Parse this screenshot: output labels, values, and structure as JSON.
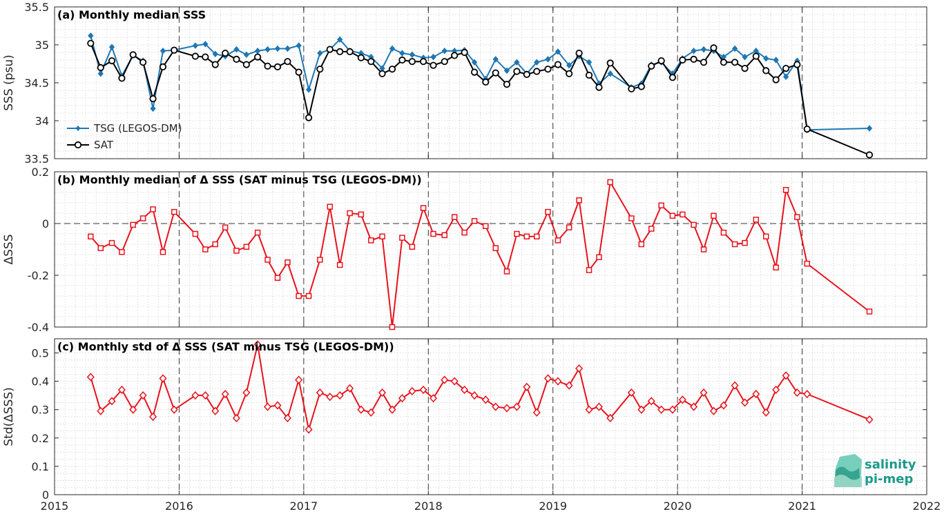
{
  "chart_data": [
    {
      "type": "line",
      "title": "(a) Monthly median SSS",
      "ylabel": "SSS (psu)",
      "xlim": [
        2015,
        2022
      ],
      "ylim": [
        33.5,
        35.5
      ],
      "yticks": [
        "33.5",
        "34",
        "34.5",
        "35",
        "35.5"
      ],
      "grid": true,
      "legend_position": "left",
      "series": [
        {
          "name": "TSG (LEGOS-DM)",
          "color": "#1f77b4",
          "marker": "filled-diamond",
          "x": [
            2015.29,
            2015.37,
            2015.46,
            2015.54,
            2015.63,
            2015.71,
            2015.79,
            2015.87,
            2015.96,
            2016.13,
            2016.21,
            2016.29,
            2016.37,
            2016.46,
            2016.54,
            2016.63,
            2016.71,
            2016.79,
            2016.87,
            2016.96,
            2017.04,
            2017.13,
            2017.21,
            2017.29,
            2017.37,
            2017.46,
            2017.54,
            2017.63,
            2017.71,
            2017.79,
            2017.87,
            2017.96,
            2018.04,
            2018.13,
            2018.21,
            2018.29,
            2018.37,
            2018.46,
            2018.54,
            2018.63,
            2018.71,
            2018.79,
            2018.87,
            2018.96,
            2019.04,
            2019.13,
            2019.21,
            2019.29,
            2019.37,
            2019.46,
            2019.63,
            2019.71,
            2019.79,
            2019.87,
            2019.96,
            2020.04,
            2020.13,
            2020.21,
            2020.29,
            2020.37,
            2020.46,
            2020.54,
            2020.63,
            2020.71,
            2020.79,
            2020.87,
            2020.96,
            2021.04,
            2021.54
          ],
          "values": [
            35.12,
            34.62,
            34.97,
            34.59,
            34.86,
            34.79,
            34.16,
            34.92,
            34.93,
            34.99,
            35.01,
            34.88,
            34.85,
            34.94,
            34.87,
            34.92,
            34.94,
            34.95,
            34.95,
            34.99,
            34.41,
            34.89,
            34.94,
            35.07,
            34.92,
            34.89,
            34.84,
            34.69,
            34.95,
            34.89,
            34.87,
            34.83,
            34.84,
            34.92,
            34.92,
            34.93,
            34.77,
            34.55,
            34.81,
            34.66,
            34.77,
            34.62,
            34.77,
            34.81,
            34.91,
            34.73,
            34.85,
            34.77,
            34.49,
            34.62,
            34.44,
            34.49,
            34.74,
            34.77,
            34.62,
            34.82,
            34.92,
            34.94,
            34.92,
            34.84,
            34.95,
            34.84,
            34.92,
            34.82,
            34.8,
            34.58,
            34.79,
            33.88,
            33.9
          ]
        },
        {
          "name": "SAT",
          "color": "#000000",
          "marker": "open-circle",
          "x": [
            2015.29,
            2015.37,
            2015.46,
            2015.54,
            2015.63,
            2015.71,
            2015.79,
            2015.87,
            2015.96,
            2016.13,
            2016.21,
            2016.29,
            2016.37,
            2016.46,
            2016.54,
            2016.63,
            2016.71,
            2016.79,
            2016.87,
            2016.96,
            2017.04,
            2017.13,
            2017.21,
            2017.29,
            2017.37,
            2017.46,
            2017.54,
            2017.63,
            2017.71,
            2017.79,
            2017.87,
            2017.96,
            2018.04,
            2018.13,
            2018.21,
            2018.29,
            2018.37,
            2018.46,
            2018.54,
            2018.63,
            2018.71,
            2018.79,
            2018.87,
            2018.96,
            2019.04,
            2019.13,
            2019.21,
            2019.29,
            2019.37,
            2019.46,
            2019.63,
            2019.71,
            2019.79,
            2019.87,
            2019.96,
            2020.04,
            2020.13,
            2020.21,
            2020.29,
            2020.37,
            2020.46,
            2020.54,
            2020.63,
            2020.71,
            2020.79,
            2020.87,
            2020.96,
            2021.04,
            2021.54
          ],
          "values": [
            35.02,
            34.7,
            34.79,
            34.56,
            34.87,
            34.77,
            34.29,
            34.71,
            34.93,
            34.85,
            34.84,
            34.74,
            34.89,
            34.81,
            34.74,
            34.84,
            34.72,
            34.71,
            34.78,
            34.64,
            34.04,
            34.68,
            34.94,
            34.91,
            34.91,
            34.83,
            34.78,
            34.62,
            34.68,
            34.8,
            34.78,
            34.78,
            34.73,
            34.78,
            34.86,
            34.9,
            34.64,
            34.51,
            34.63,
            34.48,
            34.65,
            34.61,
            34.65,
            34.68,
            34.74,
            34.62,
            34.89,
            34.6,
            34.44,
            34.76,
            34.42,
            34.45,
            34.72,
            34.79,
            34.57,
            34.8,
            34.81,
            34.77,
            34.96,
            34.77,
            34.77,
            34.69,
            34.85,
            34.66,
            34.54,
            34.69,
            34.74,
            33.89,
            33.55
          ]
        }
      ]
    },
    {
      "type": "line",
      "title": "(b) Monthly median of Δ SSS (SAT minus TSG (LEGOS-DM))",
      "ylabel": "ΔSSS",
      "xlim": [
        2015,
        2022
      ],
      "ylim": [
        -0.4,
        0.2
      ],
      "yticks": [
        "-0.4",
        "-0.2",
        "0",
        "0.2"
      ],
      "grid": true,
      "zero_line": "dashed",
      "series": [
        {
          "color": "#e8111b",
          "marker": "open-square",
          "x": [
            2015.29,
            2015.37,
            2015.46,
            2015.54,
            2015.63,
            2015.71,
            2015.79,
            2015.87,
            2015.96,
            2016.13,
            2016.21,
            2016.29,
            2016.37,
            2016.46,
            2016.54,
            2016.63,
            2016.71,
            2016.79,
            2016.87,
            2016.96,
            2017.04,
            2017.13,
            2017.21,
            2017.29,
            2017.37,
            2017.46,
            2017.54,
            2017.63,
            2017.71,
            2017.79,
            2017.87,
            2017.96,
            2018.04,
            2018.13,
            2018.21,
            2018.29,
            2018.37,
            2018.46,
            2018.54,
            2018.63,
            2018.71,
            2018.79,
            2018.87,
            2018.96,
            2019.04,
            2019.13,
            2019.21,
            2019.29,
            2019.37,
            2019.46,
            2019.63,
            2019.71,
            2019.79,
            2019.87,
            2019.96,
            2020.04,
            2020.13,
            2020.21,
            2020.29,
            2020.37,
            2020.46,
            2020.54,
            2020.63,
            2020.71,
            2020.79,
            2020.87,
            2020.96,
            2021.04,
            2021.54
          ],
          "values": [
            -0.05,
            -0.095,
            -0.075,
            -0.11,
            -0.005,
            0.02,
            0.055,
            -0.11,
            0.045,
            -0.04,
            -0.1,
            -0.08,
            -0.015,
            -0.105,
            -0.09,
            -0.035,
            -0.14,
            -0.21,
            -0.15,
            -0.28,
            -0.28,
            -0.14,
            0.065,
            -0.16,
            0.04,
            0.035,
            -0.065,
            -0.05,
            -0.4,
            -0.055,
            -0.09,
            0.06,
            -0.04,
            -0.045,
            0.025,
            -0.035,
            0.01,
            -0.01,
            -0.095,
            -0.185,
            -0.04,
            -0.05,
            -0.05,
            0.045,
            -0.065,
            -0.015,
            0.09,
            -0.18,
            -0.13,
            0.16,
            0.02,
            -0.08,
            -0.02,
            0.07,
            0.03,
            0.035,
            -0.005,
            -0.1,
            0.03,
            -0.035,
            -0.08,
            -0.075,
            0.015,
            -0.05,
            -0.17,
            0.13,
            0.025,
            -0.155,
            -0.34
          ]
        }
      ]
    },
    {
      "type": "line",
      "title": "(c) Monthly std of Δ SSS (SAT minus TSG (LEGOS-DM))",
      "ylabel": "Std(ΔSSS)",
      "xlabel": "",
      "xlim": [
        2015,
        2022
      ],
      "ylim": [
        0,
        0.55
      ],
      "xticks": [
        "2015",
        "2016",
        "2017",
        "2018",
        "2019",
        "2020",
        "2021",
        "2022"
      ],
      "yticks": [
        "0",
        "0.1",
        "0.2",
        "0.3",
        "0.4",
        "0.5"
      ],
      "grid": true,
      "series": [
        {
          "color": "#e8111b",
          "marker": "open-diamond",
          "x": [
            2015.29,
            2015.37,
            2015.46,
            2015.54,
            2015.63,
            2015.71,
            2015.79,
            2015.87,
            2015.96,
            2016.13,
            2016.21,
            2016.29,
            2016.37,
            2016.46,
            2016.54,
            2016.63,
            2016.71,
            2016.79,
            2016.87,
            2016.96,
            2017.04,
            2017.13,
            2017.21,
            2017.29,
            2017.37,
            2017.46,
            2017.54,
            2017.63,
            2017.71,
            2017.79,
            2017.87,
            2017.96,
            2018.04,
            2018.13,
            2018.21,
            2018.29,
            2018.37,
            2018.46,
            2018.54,
            2018.63,
            2018.71,
            2018.79,
            2018.87,
            2018.96,
            2019.04,
            2019.13,
            2019.21,
            2019.29,
            2019.37,
            2019.46,
            2019.63,
            2019.71,
            2019.79,
            2019.87,
            2019.96,
            2020.04,
            2020.13,
            2020.21,
            2020.29,
            2020.37,
            2020.46,
            2020.54,
            2020.63,
            2020.71,
            2020.79,
            2020.87,
            2020.96,
            2021.04,
            2021.54
          ],
          "values": [
            0.415,
            0.295,
            0.33,
            0.37,
            0.3,
            0.35,
            0.275,
            0.41,
            0.3,
            0.35,
            0.35,
            0.295,
            0.355,
            0.27,
            0.36,
            0.53,
            0.31,
            0.315,
            0.27,
            0.405,
            0.23,
            0.36,
            0.345,
            0.35,
            0.375,
            0.3,
            0.29,
            0.36,
            0.3,
            0.34,
            0.365,
            0.37,
            0.34,
            0.405,
            0.4,
            0.37,
            0.35,
            0.335,
            0.31,
            0.305,
            0.31,
            0.38,
            0.29,
            0.41,
            0.4,
            0.385,
            0.445,
            0.3,
            0.31,
            0.27,
            0.36,
            0.3,
            0.33,
            0.3,
            0.3,
            0.335,
            0.31,
            0.36,
            0.295,
            0.315,
            0.385,
            0.325,
            0.355,
            0.29,
            0.37,
            0.42,
            0.36,
            0.355,
            0.265
          ]
        }
      ]
    }
  ],
  "logo": {
    "line1": "salinity",
    "line2": "pi-mep",
    "color": "#1a9a8c"
  }
}
